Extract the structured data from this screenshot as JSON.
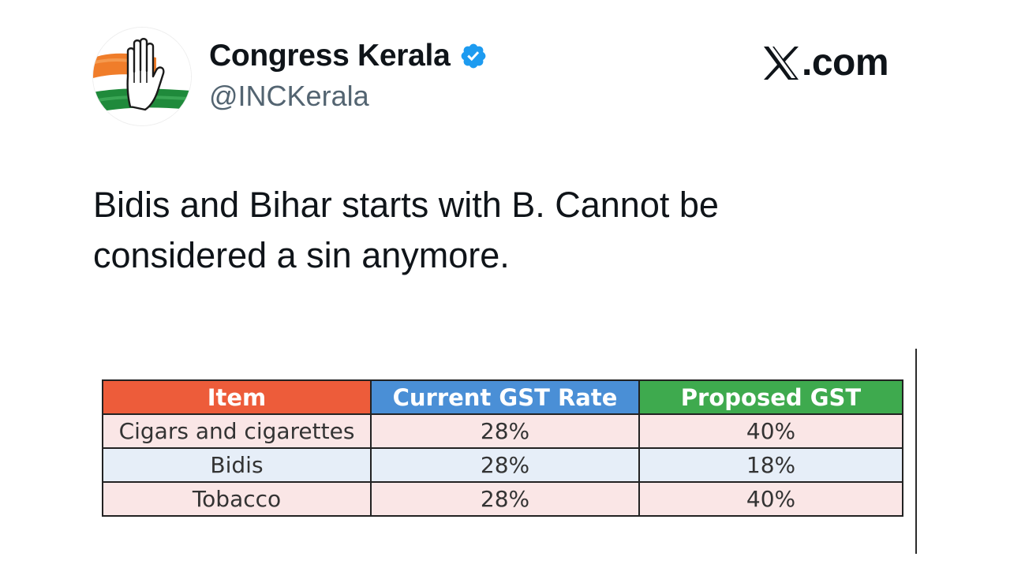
{
  "author": {
    "display_name": "Congress Kerala",
    "handle": "@INCKerala",
    "verified": true
  },
  "site": {
    "domain_text": ".com"
  },
  "post": {
    "lines": [
      "Bidis and Bihar starts with B. Cannot be",
      "considered a sin anymore."
    ]
  },
  "table": {
    "headers": [
      "Item",
      "Current GST Rate",
      "Proposed GST"
    ],
    "rows": [
      [
        "Cigars and cigarettes",
        "28%",
        "40%"
      ],
      [
        "Bidis",
        "28%",
        "18%"
      ],
      [
        "Tobacco",
        "28%",
        "40%"
      ]
    ]
  },
  "colors": {
    "header_item": "#ed5c3a",
    "header_current": "#4a8fd6",
    "header_proposed": "#3eaa4e",
    "row_pink": "#fae6e6",
    "row_blue": "#e6eef8",
    "verified_badge": "#1d9bf0",
    "handle_gray": "#536471"
  },
  "icons": {
    "avatar": "congress-hand-logo",
    "verified": "verified-badge-icon",
    "site_logo": "x-logo-icon"
  }
}
